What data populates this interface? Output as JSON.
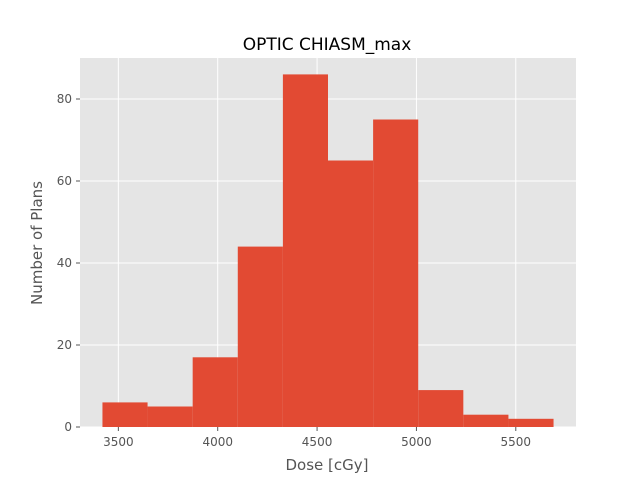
{
  "chart_data": {
    "type": "bar",
    "title": "OPTIC CHIASM_max",
    "xlabel": "Dose [cGy]",
    "ylabel": "Number of Plans",
    "bin_edges": [
      3420,
      3647,
      3874,
      4101,
      4328,
      4555,
      4782,
      5009,
      5236,
      5463,
      5690
    ],
    "values": [
      6,
      5,
      17,
      44,
      86,
      65,
      75,
      9,
      3,
      2
    ],
    "xlim": [
      3307,
      5803
    ],
    "ylim": [
      0,
      90
    ],
    "xticks": [
      3500,
      4000,
      4500,
      5000,
      5500
    ],
    "yticks": [
      0,
      20,
      40,
      60,
      80
    ],
    "grid": true,
    "colors": {
      "bar": "#E24A33",
      "plot_bg": "#E5E5E5",
      "grid": "#FFFFFF"
    }
  }
}
